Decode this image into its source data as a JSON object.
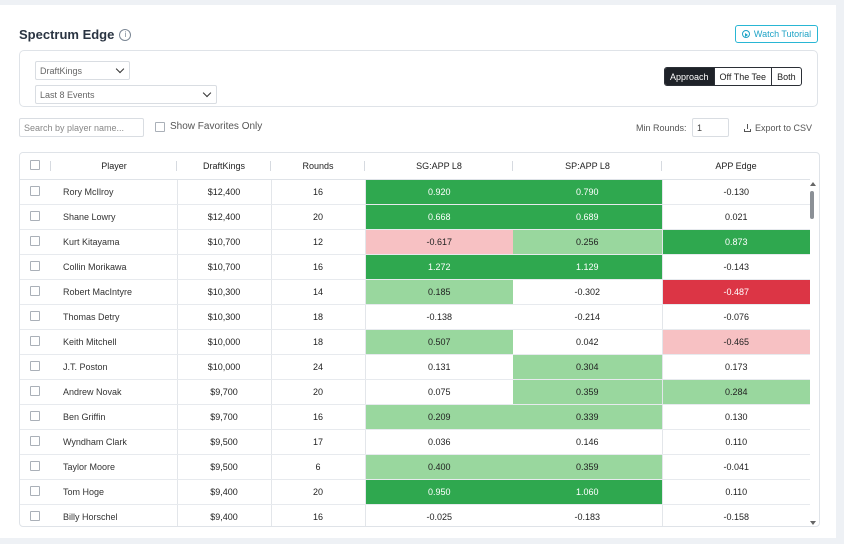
{
  "header": {
    "title": "Spectrum Edge",
    "info_icon": "i",
    "tutorial_label": "Watch Tutorial"
  },
  "filters": {
    "site": "DraftKings",
    "range": "Last 8 Events",
    "segments": [
      "Approach",
      "Off The Tee",
      "Both"
    ],
    "active_segment": "Approach"
  },
  "toolbar": {
    "search_placeholder": "Search by player name...",
    "favorites_label": "Show Favorites Only",
    "min_rounds_label": "Min Rounds:",
    "min_rounds_value": "1",
    "export_label": "Export to CSV"
  },
  "table": {
    "columns": [
      "Player",
      "DraftKings",
      "Rounds",
      "SG:APP L8",
      "SP:APP L8",
      "APP Edge"
    ],
    "rows": [
      {
        "player": "Rory McIlroy",
        "salary": "$12,400",
        "rounds": "16",
        "sg": "0.920",
        "sg_c": "dg",
        "sp": "0.790",
        "sp_c": "dg",
        "edge": "-0.130",
        "edge_c": ""
      },
      {
        "player": "Shane Lowry",
        "salary": "$12,400",
        "rounds": "20",
        "sg": "0.668",
        "sg_c": "dg",
        "sp": "0.689",
        "sp_c": "dg",
        "edge": "0.021",
        "edge_c": ""
      },
      {
        "player": "Kurt Kitayama",
        "salary": "$10,700",
        "rounds": "12",
        "sg": "-0.617",
        "sg_c": "lp",
        "sp": "0.256",
        "sp_c": "lg",
        "edge": "0.873",
        "edge_c": "dg"
      },
      {
        "player": "Collin Morikawa",
        "salary": "$10,700",
        "rounds": "16",
        "sg": "1.272",
        "sg_c": "dg",
        "sp": "1.129",
        "sp_c": "dg",
        "edge": "-0.143",
        "edge_c": ""
      },
      {
        "player": "Robert MacIntyre",
        "salary": "$10,300",
        "rounds": "14",
        "sg": "0.185",
        "sg_c": "lg",
        "sp": "-0.302",
        "sp_c": "",
        "edge": "-0.487",
        "edge_c": "dr"
      },
      {
        "player": "Thomas Detry",
        "salary": "$10,300",
        "rounds": "18",
        "sg": "-0.138",
        "sg_c": "",
        "sp": "-0.214",
        "sp_c": "",
        "edge": "-0.076",
        "edge_c": ""
      },
      {
        "player": "Keith Mitchell",
        "salary": "$10,000",
        "rounds": "18",
        "sg": "0.507",
        "sg_c": "lg",
        "sp": "0.042",
        "sp_c": "",
        "edge": "-0.465",
        "edge_c": "lp"
      },
      {
        "player": "J.T. Poston",
        "salary": "$10,000",
        "rounds": "24",
        "sg": "0.131",
        "sg_c": "",
        "sp": "0.304",
        "sp_c": "lg",
        "edge": "0.173",
        "edge_c": ""
      },
      {
        "player": "Andrew Novak",
        "salary": "$9,700",
        "rounds": "20",
        "sg": "0.075",
        "sg_c": "",
        "sp": "0.359",
        "sp_c": "lg",
        "edge": "0.284",
        "edge_c": "lg"
      },
      {
        "player": "Ben Griffin",
        "salary": "$9,700",
        "rounds": "16",
        "sg": "0.209",
        "sg_c": "lg",
        "sp": "0.339",
        "sp_c": "lg",
        "edge": "0.130",
        "edge_c": ""
      },
      {
        "player": "Wyndham Clark",
        "salary": "$9,500",
        "rounds": "17",
        "sg": "0.036",
        "sg_c": "",
        "sp": "0.146",
        "sp_c": "",
        "edge": "0.110",
        "edge_c": ""
      },
      {
        "player": "Taylor Moore",
        "salary": "$9,500",
        "rounds": "6",
        "sg": "0.400",
        "sg_c": "lg",
        "sp": "0.359",
        "sp_c": "lg",
        "edge": "-0.041",
        "edge_c": ""
      },
      {
        "player": "Tom Hoge",
        "salary": "$9,400",
        "rounds": "20",
        "sg": "0.950",
        "sg_c": "dg",
        "sp": "1.060",
        "sp_c": "dg",
        "edge": "0.110",
        "edge_c": ""
      },
      {
        "player": "Billy Horschel",
        "salary": "$9,400",
        "rounds": "16",
        "sg": "-0.025",
        "sg_c": "",
        "sp": "-0.183",
        "sp_c": "",
        "edge": "-0.158",
        "edge_c": ""
      }
    ]
  },
  "colors": {
    "dg": "#2fa84f",
    "lg": "#99d79e",
    "lp": "#f7c1c3",
    "dr": "#dc3545",
    "accent": "#1fa3c6"
  }
}
